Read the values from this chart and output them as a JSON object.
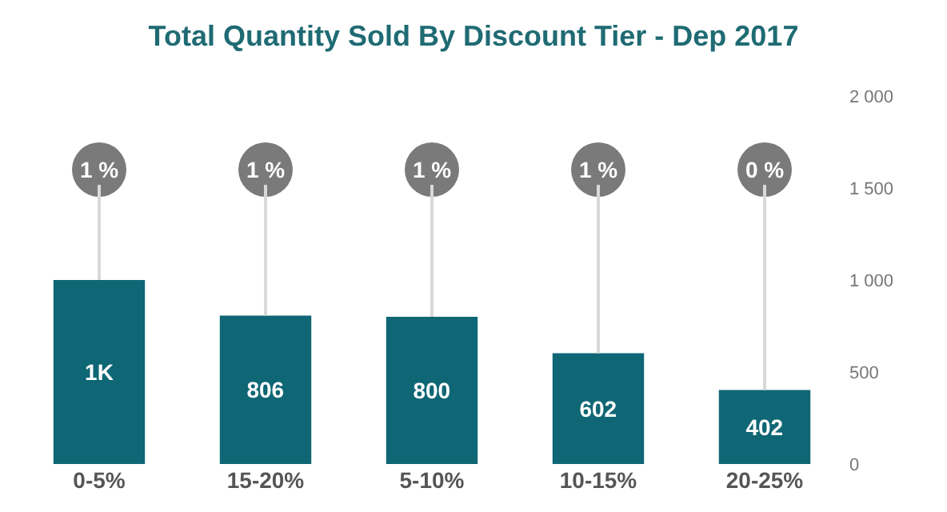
{
  "chart_data": {
    "type": "bar",
    "title": "Total Quantity Sold By Discount Tier - Dep 2017",
    "categories": [
      "0-5%",
      "15-20%",
      "5-10%",
      "10-15%",
      "20-25%"
    ],
    "values": [
      1000,
      806,
      800,
      602,
      402
    ],
    "value_labels": [
      "1K",
      "806",
      "800",
      "602",
      "402"
    ],
    "color": "#0f6674",
    "ylim": [
      0,
      2000
    ],
    "yticks": [
      0,
      500,
      {
        "value": 1000,
        "label": "1 000"
      },
      {
        "value": 1500,
        "label": "1 500"
      },
      {
        "value": 2000,
        "label": "2 000"
      }
    ],
    "annotations": [
      {
        "text": "1 %",
        "x": "0-5%",
        "y": 1000
      },
      {
        "text": "1 %",
        "x": "15-20%",
        "y": 806
      },
      {
        "text": "1 %",
        "x": "5-10%",
        "y": 800
      },
      {
        "text": "1 %",
        "x": "10-15%",
        "y": 602
      },
      {
        "text": "0 %",
        "x": "20-25%",
        "y": 402
      }
    ],
    "legend": false
  }
}
